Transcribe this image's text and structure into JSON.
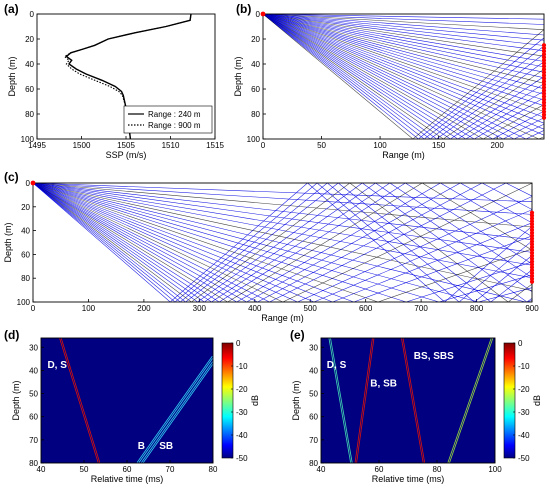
{
  "chart_data": [
    {
      "id": "a",
      "panel_label": "(a)",
      "type": "line",
      "xlabel": "SSP (m/s)",
      "ylabel": "Depth (m)",
      "xlim": [
        1495,
        1515
      ],
      "ylim": [
        0,
        100
      ],
      "y_reversed": true,
      "xticks": [
        1495,
        1500,
        1505,
        1510,
        1515
      ],
      "yticks": [
        0,
        20,
        40,
        60,
        80,
        100
      ],
      "legend_position": "bottom-right",
      "series": [
        {
          "name": "Range : 240 m",
          "style": "solid",
          "color": "#000000",
          "x": [
            1512.3,
            1512.2,
            1509.5,
            1506.0,
            1503.0,
            1501.5,
            1500.2,
            1498.8,
            1498.3,
            1498.9,
            1498.6,
            1499.4,
            1500.5,
            1502.3,
            1503.8,
            1504.5,
            1504.7,
            1505.0,
            1505.3,
            1505.5
          ],
          "y": [
            0,
            5,
            10,
            15,
            20,
            25,
            28,
            31,
            34,
            37,
            40,
            44,
            48,
            53,
            58,
            62,
            65,
            75,
            88,
            100
          ]
        },
        {
          "name": "Range : 900 m",
          "style": "dotted",
          "color": "#000000",
          "x": [
            1512.3,
            1512.2,
            1509.5,
            1506.0,
            1503.0,
            1501.5,
            1500.2,
            1498.8,
            1498.1,
            1498.6,
            1498.3,
            1498.9,
            1499.8,
            1501.5,
            1503.2,
            1504.2,
            1504.6,
            1505.0,
            1505.3,
            1505.5
          ],
          "y": [
            0,
            5,
            10,
            15,
            20,
            25,
            28,
            31,
            34,
            37,
            40,
            44,
            48,
            53,
            58,
            62,
            65,
            75,
            88,
            100
          ]
        }
      ]
    },
    {
      "id": "b",
      "panel_label": "(b)",
      "type": "line",
      "subtype": "ray-trace",
      "xlabel": "Range (m)",
      "ylabel": "Depth (m)",
      "xlim": [
        0,
        240
      ],
      "ylim": [
        0,
        100
      ],
      "y_reversed": true,
      "xticks": [
        0,
        50,
        100,
        150,
        200
      ],
      "yticks": [
        0,
        20,
        40,
        60,
        80,
        100
      ],
      "source": {
        "range": 0,
        "depth": 0
      },
      "receivers": {
        "range": 240,
        "depth_from": 25,
        "depth_to": 83,
        "count": 25
      },
      "ray_angles_deg": {
        "from": 1,
        "to": 38,
        "count": 38
      },
      "colors": {
        "ray": "#0000e0",
        "ray_dark": "#000000",
        "receiver": "#ff0000",
        "source": "#ff0000"
      }
    },
    {
      "id": "c",
      "panel_label": "(c)",
      "type": "line",
      "subtype": "ray-trace",
      "xlabel": "Range (m)",
      "ylabel": "Depth (m)",
      "xlim": [
        0,
        900
      ],
      "ylim": [
        0,
        100
      ],
      "y_reversed": true,
      "xticks": [
        0,
        100,
        200,
        300,
        400,
        500,
        600,
        700,
        800,
        900
      ],
      "yticks": [
        0,
        20,
        40,
        60,
        80,
        100
      ],
      "source": {
        "range": 0,
        "depth": 0
      },
      "receivers": {
        "range": 900,
        "depth_from": 25,
        "depth_to": 83,
        "count": 25
      },
      "ray_angles_deg": {
        "from": 1,
        "to": 22,
        "count": 32
      },
      "colors": {
        "ray": "#0000e0",
        "ray_dark": "#000000",
        "receiver": "#ff0000",
        "source": "#ff0000"
      }
    },
    {
      "id": "d",
      "panel_label": "(d)",
      "type": "heatmap",
      "xlabel": "Relative time (ms)",
      "ylabel": "Depth (m)",
      "xlim": [
        40,
        80
      ],
      "ylim": [
        26,
        80
      ],
      "y_reversed": true,
      "xticks": [
        40,
        50,
        60,
        70,
        80
      ],
      "yticks": [
        30,
        40,
        50,
        60,
        70,
        80
      ],
      "colorbar": {
        "label": "dB",
        "min": -50,
        "max": 0,
        "ticks": [
          0,
          -10,
          -20,
          -30,
          -40,
          -50
        ]
      },
      "background_db": -50,
      "arrivals": [
        {
          "label": "D, S",
          "color": "#d01010",
          "x": [
            44.5,
            53.5
          ],
          "y": [
            26,
            80
          ]
        },
        {
          "label": "B",
          "color": "#30c8f0",
          "x": [
            80,
            62.5
          ],
          "y": [
            34,
            80
          ]
        },
        {
          "label": "SB",
          "color": "#30c8f0",
          "x": [
            81,
            63.5
          ],
          "y": [
            34,
            80
          ]
        }
      ],
      "annotations": [
        {
          "text": "D, S",
          "x": 41.5,
          "y": 39
        },
        {
          "text": "B",
          "x": 62.5,
          "y": 74
        },
        {
          "text": "SB",
          "x": 67.5,
          "y": 74
        }
      ]
    },
    {
      "id": "e",
      "panel_label": "(e)",
      "type": "heatmap",
      "xlabel": "Relative time (ms)",
      "ylabel": "Depth (m)",
      "xlim": [
        40,
        100
      ],
      "ylim": [
        26,
        80
      ],
      "y_reversed": true,
      "xticks": [
        40,
        60,
        80,
        100
      ],
      "yticks": [
        30,
        40,
        50,
        60,
        70,
        80
      ],
      "colorbar": {
        "label": "dB",
        "min": -50,
        "max": 0,
        "ticks": [
          0,
          -10,
          -20,
          -30,
          -40,
          -50
        ]
      },
      "background_db": -50,
      "arrivals": [
        {
          "label": "D, S",
          "color": "#40d0b0",
          "x": [
            43,
            50.5
          ],
          "y": [
            26,
            80
          ]
        },
        {
          "label": "B, SB",
          "color": "#d01010",
          "x": [
            58,
            52
          ],
          "y": [
            26,
            80
          ]
        },
        {
          "label": "BS, SBS",
          "color": "#d01010",
          "x": [
            68,
            75.5
          ],
          "y": [
            26,
            80
          ]
        },
        {
          "label": "BS, SBS",
          "color": "#90d040",
          "x": [
            99,
            84
          ],
          "y": [
            26,
            80
          ]
        }
      ],
      "annotations": [
        {
          "text": "D, S",
          "x": 42,
          "y": 39
        },
        {
          "text": "B, SB",
          "x": 57,
          "y": 47
        },
        {
          "text": "BS, SBS",
          "x": 72,
          "y": 35
        }
      ]
    }
  ]
}
